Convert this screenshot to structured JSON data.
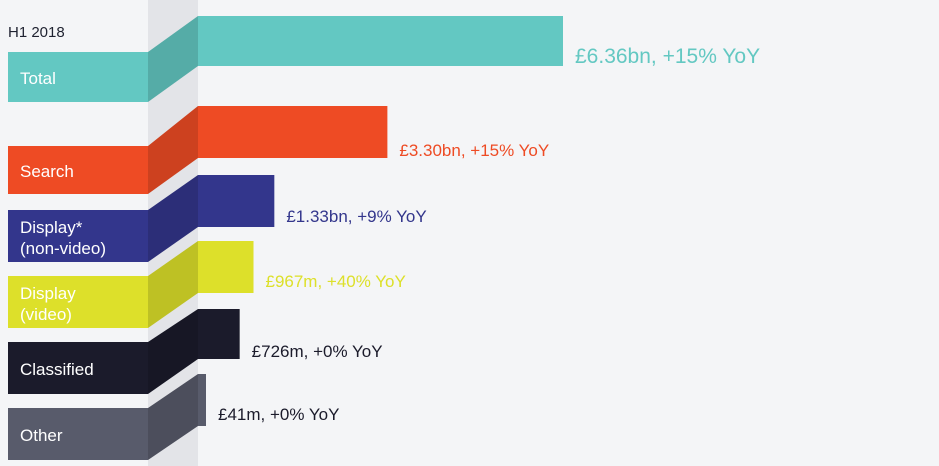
{
  "chart_data": {
    "type": "bar",
    "period_label": "H1 2018",
    "categories": [
      {
        "label_lines": [
          "Total"
        ],
        "value": 6.36,
        "value_label": "£6.36bn, +15% YoY",
        "yoy_pct": 15,
        "color": "#63c8c2"
      },
      {
        "label_lines": [
          "Search"
        ],
        "value": 3.3,
        "value_label": "£3.30bn, +15% YoY",
        "yoy_pct": 15,
        "color": "#ee4b24"
      },
      {
        "label_lines": [
          "Display*",
          "(non-video)"
        ],
        "value": 1.33,
        "value_label": "£1.33bn, +9% YoY",
        "yoy_pct": 9,
        "color": "#33368c"
      },
      {
        "label_lines": [
          "Display",
          "(video)"
        ],
        "value": 0.967,
        "value_label": "£967m, +40% YoY",
        "yoy_pct": 40,
        "color": "#dde02a"
      },
      {
        "label_lines": [
          "Classified"
        ],
        "value": 0.726,
        "value_label": "£726m, +0% YoY",
        "yoy_pct": 0,
        "color": "#1b1b2b"
      },
      {
        "label_lines": [
          "Other"
        ],
        "value": 0.041,
        "value_label": "£41m, +0% YoY",
        "yoy_pct": 0,
        "color": "#585b6b"
      }
    ],
    "value_unit": "£bn",
    "grid": false,
    "legend": "none"
  }
}
